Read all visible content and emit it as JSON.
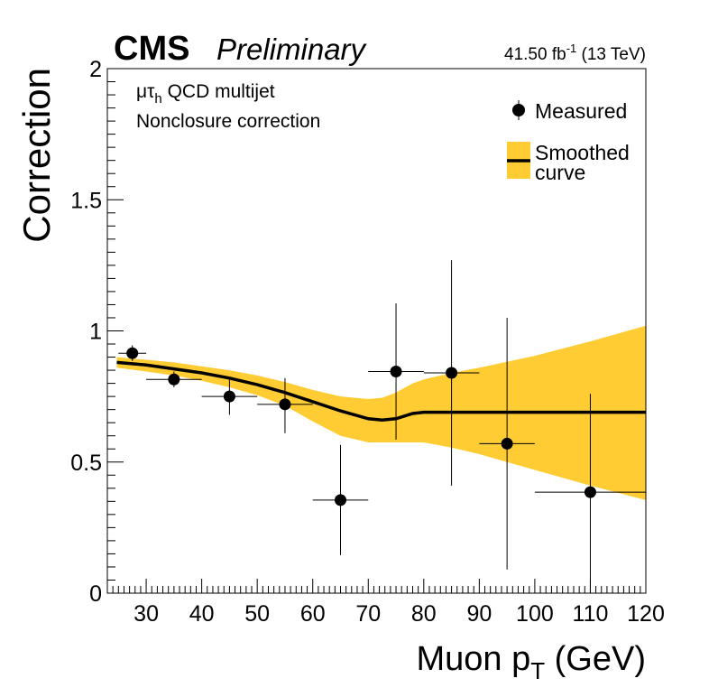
{
  "header": {
    "experiment": "CMS",
    "status": "Preliminary",
    "lumi_value": "41.50 fb",
    "lumi_exp": "-1",
    "lumi_energy": " (13 TeV)"
  },
  "annotations": {
    "channel_mu": "μ",
    "channel_tau": "τ",
    "channel_sub": "h",
    "channel_rest": " QCD multijet",
    "line2": "Nonclosure correction"
  },
  "chart_data": {
    "type": "scatter",
    "xlabel_main": "Muon p",
    "xlabel_sub": "T",
    "xlabel_unit": " (GeV)",
    "ylabel": "Correction",
    "xlim": [
      23,
      120
    ],
    "ylim": [
      0,
      2
    ],
    "x_ticks": [
      30,
      40,
      50,
      60,
      70,
      80,
      90,
      100,
      110,
      120
    ],
    "y_ticks": [
      0,
      0.5,
      1,
      1.5,
      2
    ],
    "y_tick_labels": [
      "0",
      "0.5",
      "1",
      "1.5",
      "2"
    ],
    "grid": false,
    "legend_position": "top-right",
    "series": [
      {
        "name": "Measured",
        "kind": "points",
        "points": [
          {
            "x": 27.5,
            "y": 0.915,
            "xlo": 25.0,
            "xhi": 30.0,
            "ylo": 0.885,
            "yhi": 0.945
          },
          {
            "x": 35.0,
            "y": 0.815,
            "xlo": 30.0,
            "xhi": 40.0,
            "ylo": 0.785,
            "yhi": 0.845
          },
          {
            "x": 45.0,
            "y": 0.75,
            "xlo": 40.0,
            "xhi": 50.0,
            "ylo": 0.68,
            "yhi": 0.82
          },
          {
            "x": 55.0,
            "y": 0.72,
            "xlo": 50.0,
            "xhi": 60.0,
            "ylo": 0.61,
            "yhi": 0.82
          },
          {
            "x": 65.0,
            "y": 0.355,
            "xlo": 60.0,
            "xhi": 70.0,
            "ylo": 0.145,
            "yhi": 0.565
          },
          {
            "x": 75.0,
            "y": 0.845,
            "xlo": 70.0,
            "xhi": 80.0,
            "ylo": 0.585,
            "yhi": 1.105
          },
          {
            "x": 85.0,
            "y": 0.84,
            "xlo": 80.0,
            "xhi": 90.0,
            "ylo": 0.41,
            "yhi": 1.27
          },
          {
            "x": 95.0,
            "y": 0.57,
            "xlo": 90.0,
            "xhi": 100.0,
            "ylo": 0.09,
            "yhi": 1.05
          },
          {
            "x": 110.0,
            "y": 0.385,
            "xlo": 100.0,
            "xhi": 120.0,
            "ylo": 0.0,
            "yhi": 0.76
          }
        ],
        "color": "#000000"
      },
      {
        "name": "Smoothed curve",
        "kind": "line_band",
        "x": [
          24.7,
          30,
          35,
          40,
          45,
          50,
          55,
          60,
          65,
          70,
          72.5,
          75,
          78,
          80,
          85,
          90,
          100,
          110,
          120
        ],
        "y": [
          0.88,
          0.87,
          0.855,
          0.84,
          0.82,
          0.795,
          0.765,
          0.73,
          0.695,
          0.665,
          0.66,
          0.665,
          0.685,
          0.69,
          0.69,
          0.69,
          0.69,
          0.69,
          0.69
        ],
        "band_lo": [
          0.86,
          0.845,
          0.83,
          0.81,
          0.785,
          0.755,
          0.715,
          0.655,
          0.6,
          0.575,
          0.575,
          0.575,
          0.575,
          0.575,
          0.555,
          0.53,
          0.47,
          0.41,
          0.355
        ],
        "band_hi": [
          0.9,
          0.89,
          0.88,
          0.865,
          0.85,
          0.83,
          0.805,
          0.775,
          0.75,
          0.74,
          0.745,
          0.765,
          0.8,
          0.815,
          0.84,
          0.86,
          0.905,
          0.96,
          1.02
        ],
        "line_color": "#000000",
        "band_color": "#FFCC33"
      }
    ],
    "legend": {
      "measured": "Measured",
      "smoothed_line1": "Smoothed",
      "smoothed_line2": "curve"
    }
  }
}
